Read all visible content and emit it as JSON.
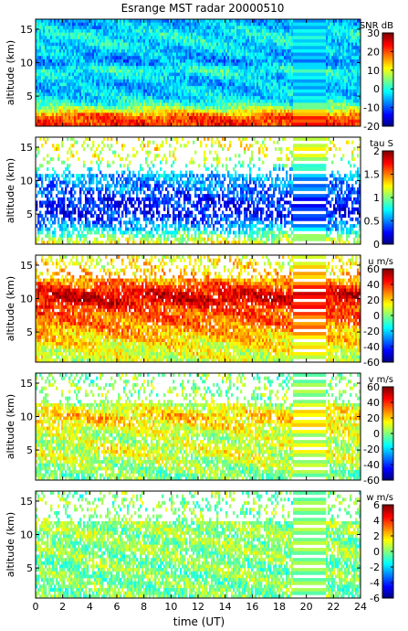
{
  "chart_data": [
    {
      "type": "heatmap",
      "title": "Esrange MST radar 20000510",
      "variable": "SNR",
      "colorbar_label": "SNR dB",
      "ylabel": "altitude (km)",
      "xlabel": "",
      "x_range": [
        0,
        24
      ],
      "ylim": [
        0.5,
        16.5
      ],
      "y_ticks": [
        5,
        10,
        15
      ],
      "clim": [
        -20,
        30
      ],
      "colorbar_ticks": [
        -20,
        -10,
        0,
        10,
        20,
        30
      ],
      "profile": [
        [
          1,
          22
        ],
        [
          2,
          20
        ],
        [
          3,
          8
        ],
        [
          4,
          0
        ],
        [
          5,
          -3
        ],
        [
          7,
          -5
        ],
        [
          9,
          1
        ],
        [
          10,
          -7
        ],
        [
          12,
          -3
        ],
        [
          14,
          -1
        ],
        [
          15,
          -3
        ],
        [
          16,
          -5
        ]
      ],
      "data_gap_hours": [
        19.0,
        21.5
      ],
      "coverage": "full"
    },
    {
      "type": "heatmap",
      "variable": "tau",
      "colorbar_label": "tau S",
      "ylabel": "altitude (km)",
      "xlabel": "",
      "x_range": [
        0,
        24
      ],
      "ylim": [
        0.5,
        16.5
      ],
      "y_ticks": [
        5,
        10,
        15
      ],
      "clim": [
        0,
        2
      ],
      "colorbar_ticks": [
        0,
        0.5,
        1,
        1.5,
        2
      ],
      "profile": [
        [
          1,
          1.2
        ],
        [
          3,
          0.6
        ],
        [
          5,
          0.3
        ],
        [
          7,
          0.3
        ],
        [
          9,
          0.5
        ],
        [
          11,
          0.6
        ],
        [
          13,
          1.1
        ],
        [
          15,
          1.2
        ]
      ],
      "data_gap_hours": [
        19.0,
        21.5
      ],
      "coverage": "sparse"
    },
    {
      "type": "heatmap",
      "variable": "u",
      "colorbar_label": "u m/s",
      "ylabel": "altitude (km)",
      "xlabel": "",
      "x_range": [
        0,
        24
      ],
      "ylim": [
        0.5,
        16.5
      ],
      "y_ticks": [
        5,
        10,
        15
      ],
      "clim": [
        -60,
        60
      ],
      "colorbar_ticks": [
        -60,
        -40,
        -20,
        0,
        20,
        40,
        60
      ],
      "profile": [
        [
          1,
          10
        ],
        [
          3,
          15
        ],
        [
          5,
          25
        ],
        [
          6,
          30
        ],
        [
          8,
          35
        ],
        [
          10,
          50
        ],
        [
          11,
          45
        ],
        [
          13,
          25
        ],
        [
          15,
          15
        ]
      ],
      "data_gap_hours": [
        19.0,
        21.5
      ],
      "coverage": "dense"
    },
    {
      "type": "heatmap",
      "variable": "v",
      "colorbar_label": "v m/s",
      "ylabel": "altitude (km)",
      "xlabel": "",
      "x_range": [
        0,
        24
      ],
      "ylim": [
        0.5,
        16.5
      ],
      "y_ticks": [
        5,
        10,
        15
      ],
      "clim": [
        -60,
        60
      ],
      "colorbar_ticks": [
        -60,
        -40,
        -20,
        0,
        20,
        40,
        60
      ],
      "profile": [
        [
          1,
          0
        ],
        [
          3,
          5
        ],
        [
          5,
          12
        ],
        [
          7,
          5
        ],
        [
          9,
          18
        ],
        [
          10,
          22
        ],
        [
          12,
          5
        ],
        [
          15,
          0
        ]
      ],
      "data_gap_hours": [
        19.0,
        21.5
      ],
      "coverage": "medium"
    },
    {
      "type": "heatmap",
      "variable": "w",
      "colorbar_label": "w m/s",
      "ylabel": "altitude (km)",
      "xlabel": "time (UT)",
      "x_range": [
        0,
        24
      ],
      "x_ticks": [
        0,
        2,
        4,
        6,
        8,
        10,
        12,
        14,
        16,
        18,
        20,
        22,
        24
      ],
      "ylim": [
        0.5,
        16.5
      ],
      "y_ticks": [
        5,
        10,
        15
      ],
      "clim": [
        -6,
        6
      ],
      "colorbar_ticks": [
        -6,
        -4,
        -2,
        0,
        2,
        4,
        6
      ],
      "profile": [
        [
          1,
          0
        ],
        [
          5,
          0
        ],
        [
          10,
          0.3
        ],
        [
          15,
          0
        ]
      ],
      "data_gap_hours": [
        19.0,
        21.5
      ],
      "coverage": "medium"
    }
  ]
}
